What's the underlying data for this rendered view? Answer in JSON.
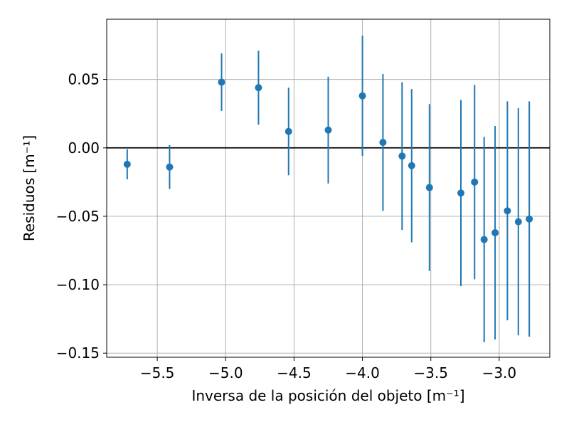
{
  "chart_data": {
    "type": "scatter",
    "title": "",
    "xlabel": "Inversa de la posición del objeto [m⁻¹]",
    "ylabel": "Residuos [m⁻¹]",
    "xlim": [
      -5.87,
      -2.63
    ],
    "ylim": [
      -0.153,
      0.094
    ],
    "xticks": [
      -5.5,
      -5.0,
      -4.5,
      -4.0,
      -3.5,
      -3.0
    ],
    "xtick_labels": [
      "−5.5",
      "−5.0",
      "−4.5",
      "−4.0",
      "−3.5",
      "−3.0"
    ],
    "yticks": [
      0.05,
      0.0,
      -0.05,
      -0.1,
      -0.15
    ],
    "ytick_labels": [
      "0.05",
      "0.00",
      "−0.05",
      "−0.10",
      "−0.15"
    ],
    "grid": true,
    "reference_line_y": 0,
    "series": [
      {
        "marker_color": "#1f77b4",
        "points": [
          {
            "x": -5.72,
            "y": -0.012,
            "err": 0.011
          },
          {
            "x": -5.41,
            "y": -0.014,
            "err": 0.016
          },
          {
            "x": -5.03,
            "y": 0.048,
            "err": 0.021
          },
          {
            "x": -4.76,
            "y": 0.044,
            "err": 0.027
          },
          {
            "x": -4.54,
            "y": 0.012,
            "err": 0.032
          },
          {
            "x": -4.25,
            "y": 0.013,
            "err": 0.039
          },
          {
            "x": -4.0,
            "y": 0.038,
            "err": 0.044
          },
          {
            "x": -3.85,
            "y": 0.004,
            "err": 0.05
          },
          {
            "x": -3.71,
            "y": -0.006,
            "err": 0.054
          },
          {
            "x": -3.64,
            "y": -0.013,
            "err": 0.056
          },
          {
            "x": -3.51,
            "y": -0.029,
            "err": 0.061
          },
          {
            "x": -3.28,
            "y": -0.033,
            "err": 0.068
          },
          {
            "x": -3.18,
            "y": -0.025,
            "err": 0.071
          },
          {
            "x": -3.11,
            "y": -0.067,
            "err": 0.075
          },
          {
            "x": -3.03,
            "y": -0.062,
            "err": 0.078
          },
          {
            "x": -2.94,
            "y": -0.046,
            "err": 0.08
          },
          {
            "x": -2.86,
            "y": -0.054,
            "err": 0.083
          },
          {
            "x": -2.78,
            "y": -0.052,
            "err": 0.086
          }
        ]
      }
    ]
  }
}
